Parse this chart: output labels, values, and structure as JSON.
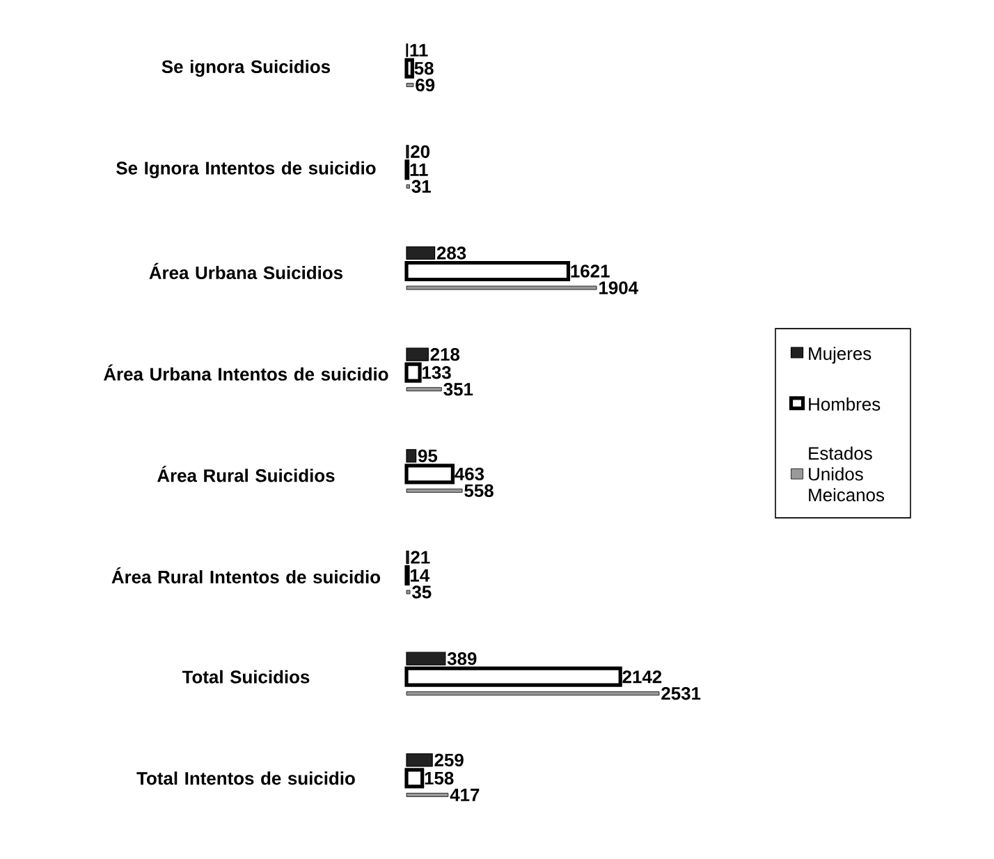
{
  "chart_data": {
    "type": "bar",
    "orientation": "horizontal",
    "categories": [
      "Se ignora Suicidios",
      "Se Ignora Intentos de suicidio",
      "Área Urbana Suicidios",
      "Área Urbana Intentos de suicidio",
      "Área Rural Suicidios",
      "Área Rural Intentos de suicidio",
      "Total Suicidios",
      "Total Intentos de suicidio"
    ],
    "series": [
      {
        "name": "Mujeres",
        "color": "#222222",
        "values": [
          11,
          20,
          283,
          218,
          95,
          21,
          389,
          259
        ]
      },
      {
        "name": "Hombres",
        "color": "#ffffff",
        "values": [
          58,
          11,
          1621,
          133,
          463,
          14,
          2142,
          158
        ]
      },
      {
        "name": "Estados Unidos Meicanos",
        "color": "#999999",
        "values": [
          69,
          31,
          1904,
          351,
          558,
          35,
          2531,
          417
        ]
      }
    ],
    "data_labels": true,
    "legend": "right"
  }
}
